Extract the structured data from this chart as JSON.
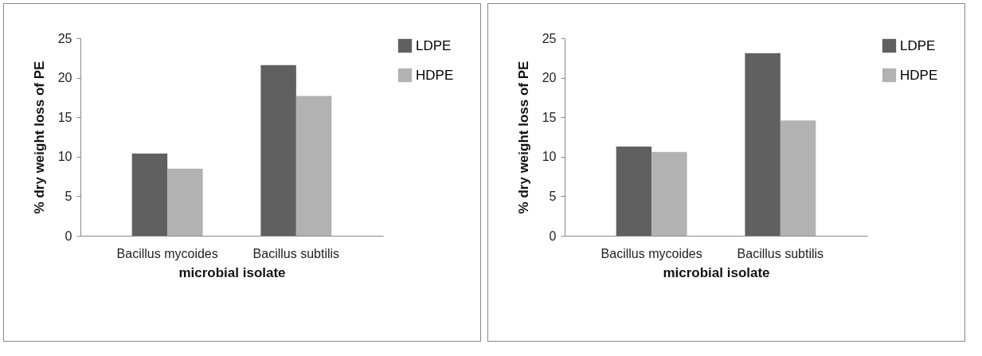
{
  "chart_data": [
    {
      "type": "bar",
      "categories": [
        "Bacillus mycoides",
        "Bacillus subtilis"
      ],
      "xlabel": "microbial isolate",
      "ylabel": "% dry weight loss of PE",
      "ylim": [
        0,
        25
      ],
      "yticks": [
        0,
        5,
        10,
        15,
        20,
        25
      ],
      "legend": "right",
      "grid": false,
      "series": [
        {
          "name": "LDPE",
          "color": "#606060",
          "values": [
            10.4,
            21.6
          ]
        },
        {
          "name": "HDPE",
          "color": "#b2b2b2",
          "values": [
            8.5,
            17.7
          ]
        }
      ]
    },
    {
      "type": "bar",
      "categories": [
        "Bacillus mycoides",
        "Bacillus subtilis"
      ],
      "xlabel": "microbial isolate",
      "ylabel": "% dry weight loss of PE",
      "ylim": [
        0,
        25
      ],
      "yticks": [
        0,
        5,
        10,
        15,
        20,
        25
      ],
      "legend": "right",
      "grid": false,
      "series": [
        {
          "name": "LDPE",
          "color": "#606060",
          "values": [
            11.3,
            23.1
          ]
        },
        {
          "name": "HDPE",
          "color": "#b2b2b2",
          "values": [
            10.6,
            14.6
          ]
        }
      ]
    }
  ]
}
